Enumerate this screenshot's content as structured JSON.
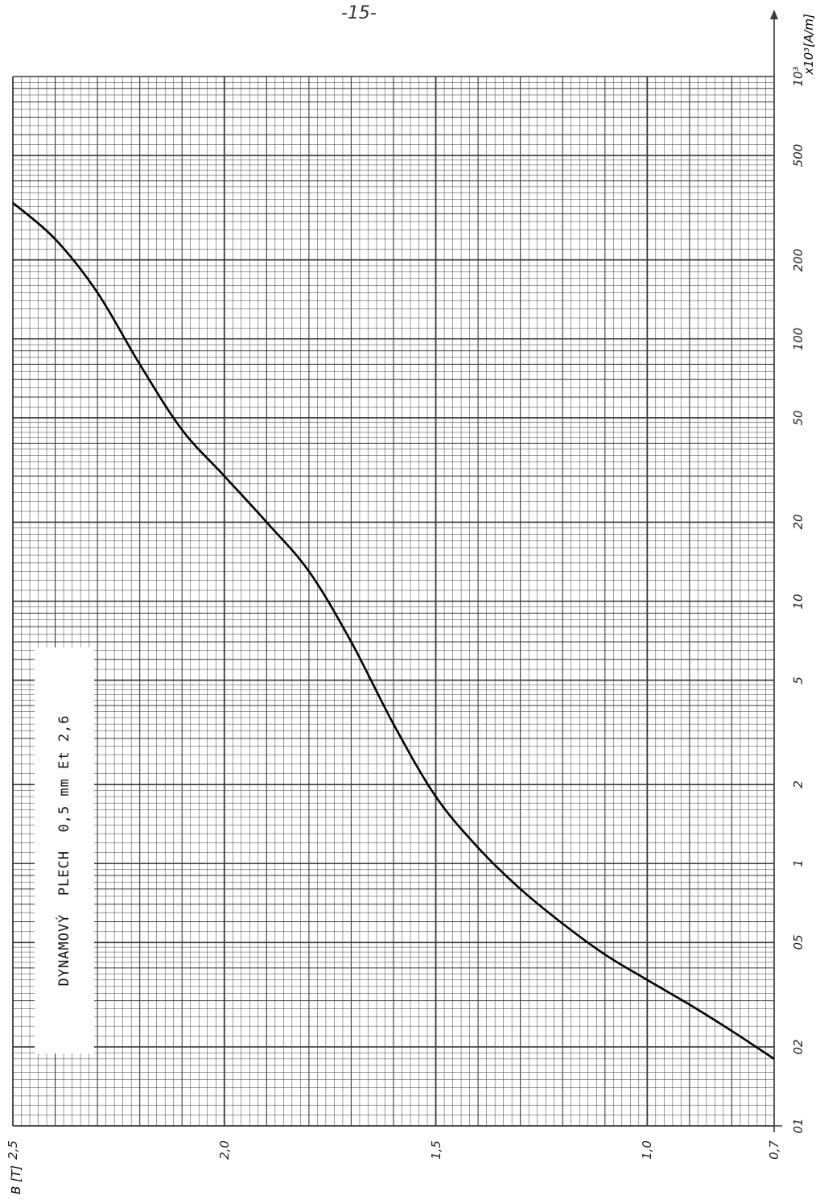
{
  "page_number": "-15-",
  "chart_label": "DYNAMOVÝ  PLECH  0,5 mm Et 2,6",
  "colors": {
    "grid": "#3a3a3a",
    "curve": "#000000",
    "paper": "#ffffff"
  },
  "chart_data": {
    "type": "line",
    "title": "DYNAMOVÝ  PLECH  0,5 mm Et 2,6",
    "xlabel": "B [T]",
    "ylabel": "x10³[A/m]",
    "x_scale": "linear",
    "y_scale": "log",
    "xlim": [
      0.7,
      2.5
    ],
    "ylim": [
      0.1,
      1000
    ],
    "x_ticks": [
      "0,7",
      "1,0",
      "1,5",
      "2,0",
      "2,5"
    ],
    "x_tick_values": [
      0.7,
      1.0,
      1.5,
      2.0,
      2.5
    ],
    "y_ticks": [
      "01",
      "02",
      "05",
      "1",
      "2",
      "5",
      "10",
      "20",
      "50",
      "100",
      "200",
      "500",
      "10³"
    ],
    "y_tick_values": [
      0.1,
      0.2,
      0.5,
      1,
      2,
      5,
      10,
      20,
      50,
      100,
      200,
      500,
      1000
    ],
    "grid": true,
    "series": [
      {
        "x": [
          0.7,
          0.8,
          0.9,
          1.0,
          1.1,
          1.2,
          1.3,
          1.4,
          1.5,
          1.6,
          1.7,
          1.8,
          1.9,
          2.0,
          2.1,
          2.2,
          2.3,
          2.4,
          2.5
        ],
        "y": [
          0.18,
          0.23,
          0.29,
          0.36,
          0.45,
          0.59,
          0.8,
          1.15,
          1.8,
          3.4,
          7.0,
          13.0,
          20.0,
          30.0,
          45.0,
          80.0,
          150.0,
          240.0,
          330.0
        ]
      }
    ]
  }
}
